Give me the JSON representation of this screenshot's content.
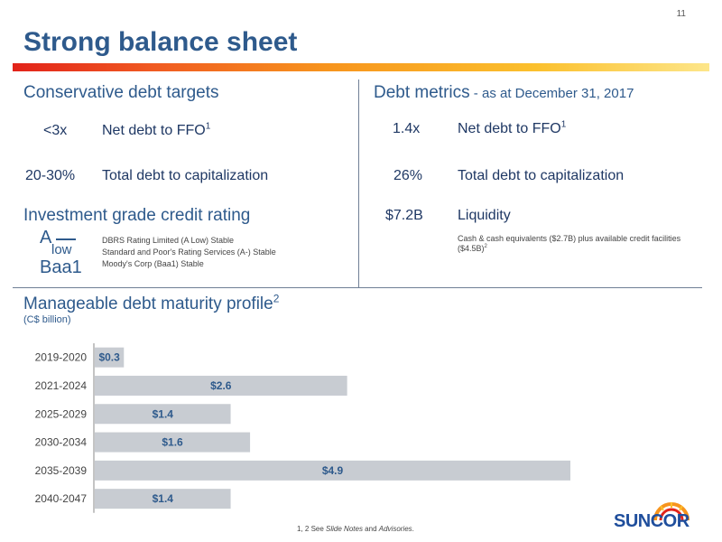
{
  "page_number": "11",
  "title": "Strong balance sheet",
  "targets": {
    "heading": "Conservative debt targets",
    "items": [
      {
        "value": "<3x",
        "label": "Net debt to FFO",
        "sup": "1"
      },
      {
        "value": "20-30%",
        "label": "Total debt to capitalization",
        "sup": ""
      }
    ]
  },
  "metrics": {
    "heading": "Debt metrics",
    "heading_suffix": " - as at December 31, 2017",
    "items": [
      {
        "value": "1.4x",
        "label": "Net debt to FFO",
        "sup": "1"
      },
      {
        "value": "26%",
        "label": "Total debt to capitalization",
        "sup": ""
      },
      {
        "value": "$7.2B",
        "label": "Liquidity",
        "sup": ""
      }
    ],
    "liquidity_note": "Cash & cash equivalents ($2.7B) plus available credit facilities ($4.5B)",
    "liquidity_note_sup": "2"
  },
  "credit": {
    "heading": "Investment grade credit rating",
    "rating_a": "A",
    "rating_low": "low",
    "rating_baa1": "Baa1",
    "agencies": [
      "DBRS Rating Limited (A Low) Stable",
      "Standard and Poor's Rating Services (A-) Stable",
      "Moody's Corp (Baa1) Stable"
    ]
  },
  "maturity": {
    "heading": "Manageable debt maturity profile",
    "heading_sup": "2",
    "subheading": "(C$ billion)"
  },
  "chart_data": {
    "type": "bar",
    "orientation": "horizontal",
    "title": "Manageable debt maturity profile",
    "unit": "C$ billion",
    "categories": [
      "2019-2020",
      "2021-2024",
      "2025-2029",
      "2030-2034",
      "2035-2039",
      "2040-2047"
    ],
    "values": [
      0.3,
      2.6,
      1.4,
      1.6,
      4.9,
      1.4
    ],
    "data_labels": [
      "$0.3",
      "$2.6",
      "$1.4",
      "$1.6",
      "$4.9",
      "$1.4"
    ],
    "xlim": [
      0,
      4.9
    ],
    "grid": false,
    "bar_color": "#c8ccd2",
    "label_color": "#2e5a8c"
  },
  "footer": {
    "prefix": "1, 2  See ",
    "italic": "Slide Notes",
    "middle": " and ",
    "italic2": "Advisories",
    "suffix": "."
  },
  "logo": {
    "text": "SUNCOR",
    "colors": [
      "#1f4e9c",
      "#f7941d",
      "#e2231a"
    ]
  }
}
